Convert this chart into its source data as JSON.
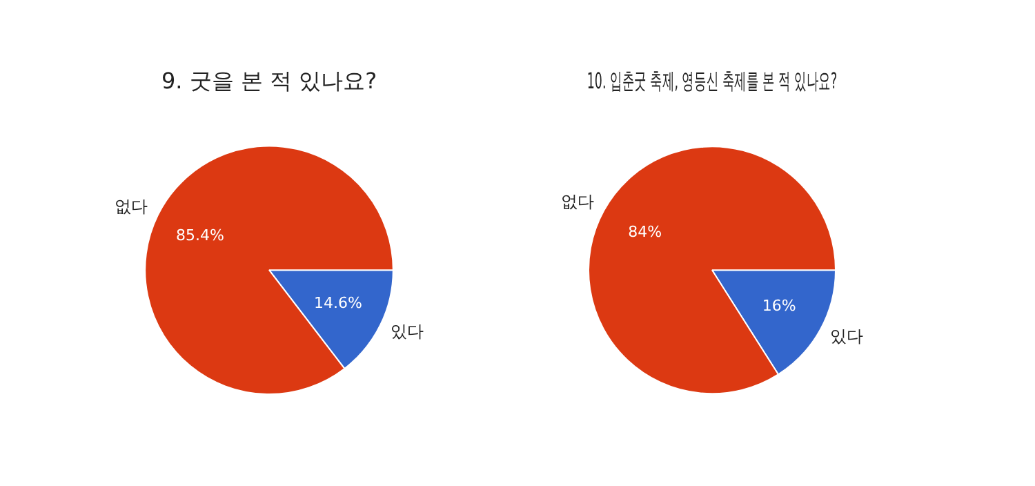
{
  "chart_data": [
    {
      "type": "pie",
      "title": "9. 굿을 본 적 있나요?",
      "categories": [
        "있다",
        "없다"
      ],
      "values": [
        14.6,
        85.4
      ],
      "colors": [
        "#3366cc",
        "#dc3912"
      ],
      "value_labels": [
        "14.6%",
        "85.4%"
      ],
      "legend": false
    },
    {
      "type": "pie",
      "title": "10. 입춘굿 축제, 영등신 축제를 본 적 있나요?",
      "categories": [
        "있다",
        "없다"
      ],
      "values": [
        16,
        84
      ],
      "colors": [
        "#3366cc",
        "#dc3912"
      ],
      "value_labels": [
        "16%",
        "84%"
      ],
      "legend": false
    }
  ]
}
